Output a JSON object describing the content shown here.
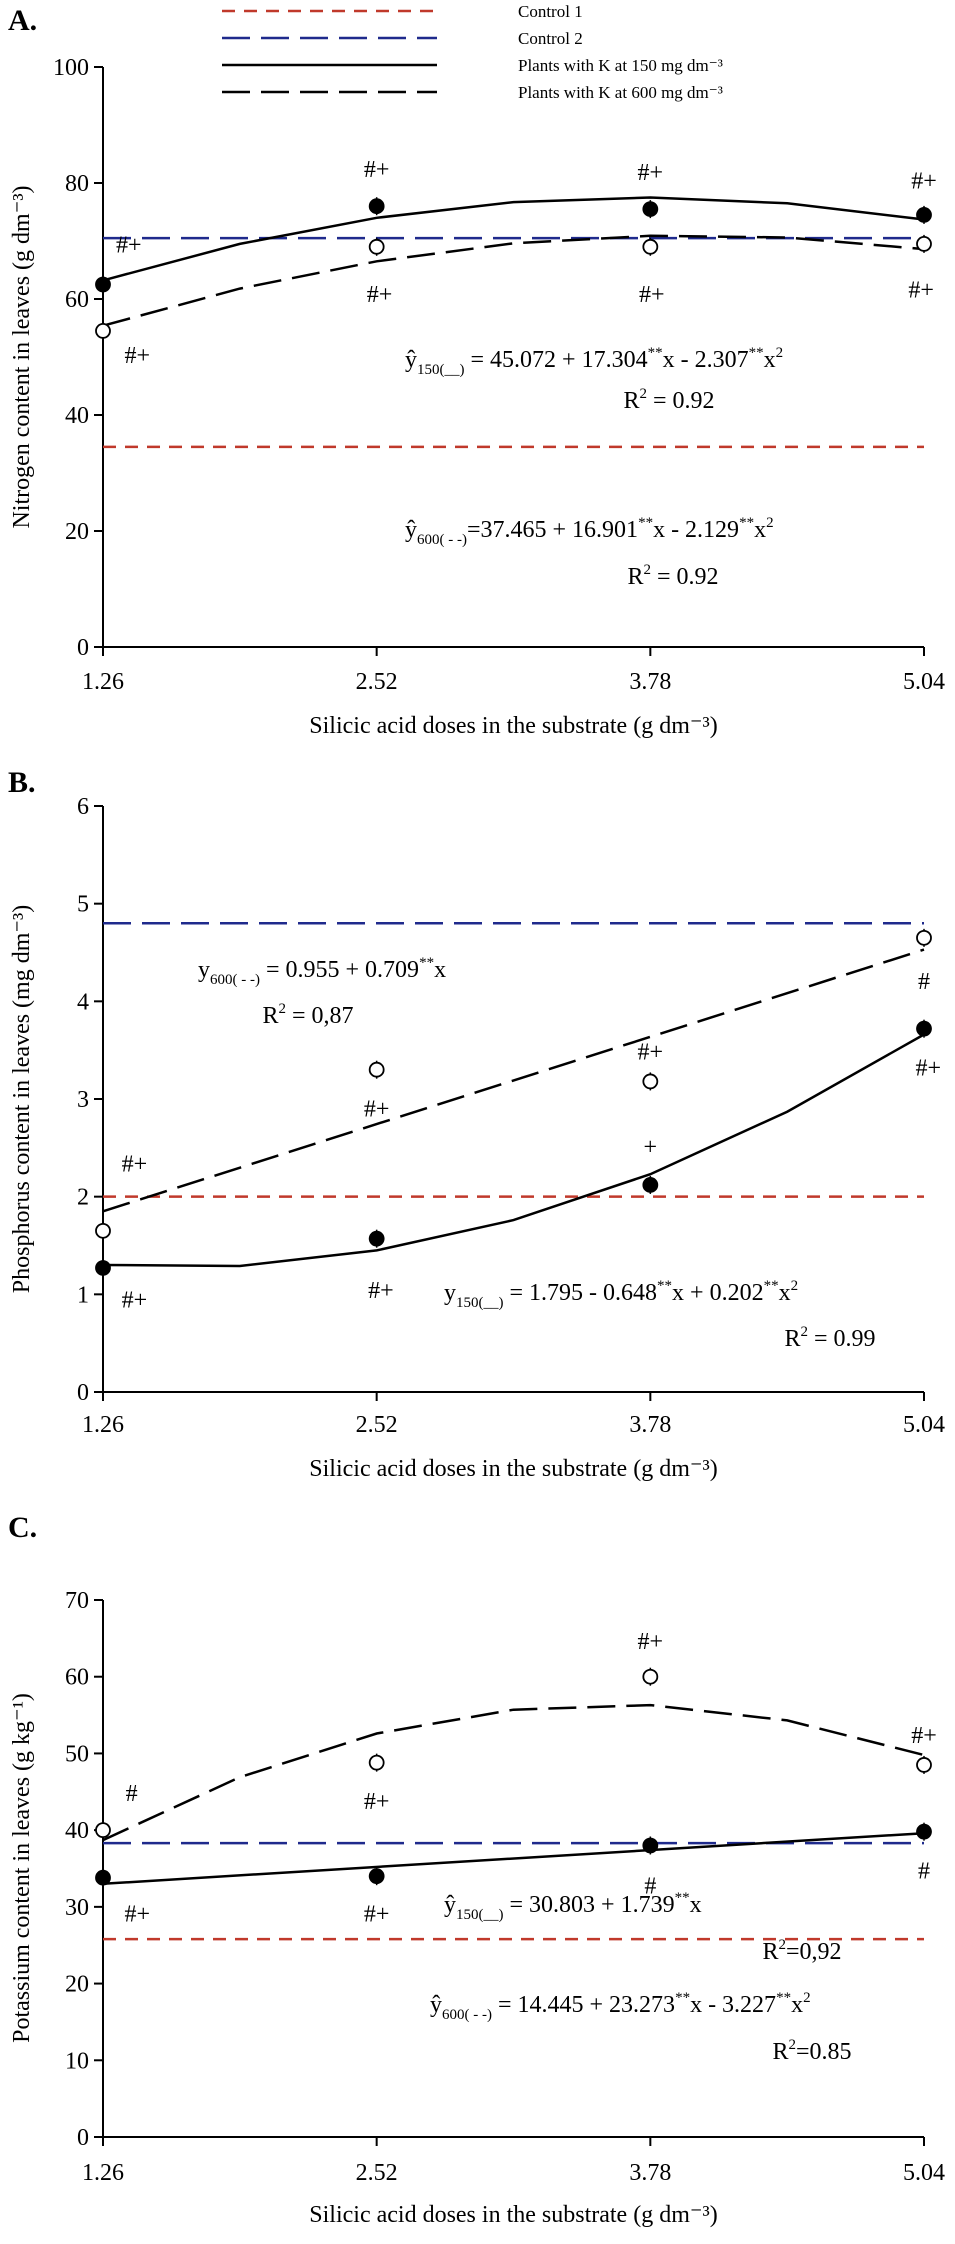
{
  "chart_data": [
    {
      "type": "scatter",
      "panel_label": "A.",
      "ylabel": "Nitrogen content in leaves (g dm⁻³)",
      "xlabel": "Silicic acid doses in the substrate (g dm⁻³)",
      "x": [
        1.26,
        2.52,
        3.78,
        5.04
      ],
      "xlim": [
        1.26,
        5.04
      ],
      "xticks": [
        1.26,
        2.52,
        3.78,
        5.04
      ],
      "ylim": [
        0,
        100
      ],
      "yticks": [
        0,
        20,
        40,
        60,
        80,
        100
      ],
      "legend": "top",
      "series": [
        {
          "name": "Control 1",
          "kind": "hline",
          "value": 34.5,
          "color": "#c0392b",
          "dash": "short"
        },
        {
          "name": "Control 2",
          "kind": "hline",
          "value": 70.5,
          "color": "#1f2a8c",
          "dash": "long"
        },
        {
          "name": "Plants with K at 150 mg dm⁻³",
          "kind": "points",
          "marker": "filled",
          "color": "#000000",
          "dash": "solid",
          "values": [
            62.5,
            76,
            75.5,
            74.5
          ],
          "labels": [
            "#+",
            "#+",
            "#+",
            "#+"
          ],
          "fit": {
            "x": [
              1.26,
              1.89,
              2.52,
              3.15,
              3.78,
              4.41,
              5.04
            ],
            "values": [
              63.2,
              69.5,
              74.0,
              76.7,
              77.5,
              76.5,
              73.7
            ]
          }
        },
        {
          "name": "Plants with K at 600 mg dm⁻³",
          "kind": "points",
          "marker": "open",
          "color": "#000000",
          "dash": "long",
          "values": [
            54.5,
            69,
            69,
            69.5
          ],
          "labels": [
            "#+",
            "#+",
            "#+",
            "#+"
          ],
          "fit": {
            "x": [
              1.26,
              1.89,
              2.52,
              3.15,
              3.78,
              4.41,
              5.04
            ],
            "values": [
              55.4,
              61.8,
              66.5,
              69.6,
              70.9,
              70.6,
              68.6
            ]
          }
        }
      ],
      "equations": [
        [
          "ŷ",
          {
            "sub": "150(__)"
          },
          " = 45.072 + 17.304",
          {
            "sup": "**"
          },
          "x - 2.307",
          {
            "sup": "**"
          },
          "x",
          {
            "sup": "2"
          }
        ],
        [
          "R",
          {
            "sup": "2"
          },
          " = 0.92"
        ],
        [
          "ŷ",
          {
            "sub": "600( - -)"
          },
          "=37.465 + 16.901",
          {
            "sup": "**"
          },
          "x - 2.129",
          {
            "sup": "**"
          },
          "x",
          {
            "sup": "2"
          }
        ],
        [
          "R",
          {
            "sup": "2"
          },
          " = 0.92"
        ]
      ]
    },
    {
      "type": "scatter",
      "panel_label": "B.",
      "ylabel": "Phosphorus content in leaves (mg dm⁻³)",
      "xlabel": "Silicic acid doses in the substrate (g dm⁻³)",
      "x": [
        1.26,
        2.52,
        3.78,
        5.04
      ],
      "xlim": [
        1.26,
        5.04
      ],
      "xticks": [
        1.26,
        2.52,
        3.78,
        5.04
      ],
      "ylim": [
        0,
        6
      ],
      "yticks": [
        0,
        1,
        2,
        3,
        4,
        5,
        6
      ],
      "series": [
        {
          "kind": "hline",
          "value": 2.0,
          "color": "#c0392b",
          "dash": "short"
        },
        {
          "kind": "hline",
          "value": 4.8,
          "color": "#1f2a8c",
          "dash": "long"
        },
        {
          "kind": "points",
          "marker": "filled",
          "color": "#000000",
          "dash": "solid",
          "values": [
            1.27,
            1.57,
            2.12,
            3.72
          ],
          "labels": [
            "#+",
            "#+",
            "+",
            "#+"
          ],
          "fit": {
            "x": [
              1.26,
              1.89,
              2.52,
              3.15,
              3.78,
              4.41,
              5.04
            ],
            "values": [
              1.3,
              1.29,
              1.45,
              1.76,
              2.23,
              2.87,
              3.66
            ]
          }
        },
        {
          "kind": "points",
          "marker": "open",
          "color": "#000000",
          "dash": "long",
          "values": [
            1.65,
            3.3,
            3.18,
            4.65
          ],
          "labels": [
            "#+",
            "#+",
            "#+",
            "#"
          ],
          "fit": {
            "x": [
              1.26,
              5.04
            ],
            "values": [
              1.85,
              4.53
            ]
          }
        }
      ],
      "equations": [
        [
          "y",
          {
            "sub": "600( - -)"
          },
          " = 0.955 + 0.709",
          {
            "sup": "**"
          },
          "x"
        ],
        [
          "R",
          {
            "sup": "2"
          },
          " = 0,87"
        ],
        [
          "y",
          {
            "sub": "150(__)"
          },
          " = 1.795 - 0.648",
          {
            "sup": "**"
          },
          "x + 0.202",
          {
            "sup": "**"
          },
          "x",
          {
            "sup": "2"
          }
        ],
        [
          "R",
          {
            "sup": "2"
          },
          " = 0.99"
        ]
      ]
    },
    {
      "type": "scatter",
      "panel_label": "C.",
      "ylabel": "Potassium content in leaves (g kg⁻¹)",
      "xlabel": "Silicic acid doses in the substrate (g dm⁻³)",
      "x": [
        1.26,
        2.52,
        3.78,
        5.04
      ],
      "xlim": [
        1.26,
        5.04
      ],
      "xticks": [
        1.26,
        2.52,
        3.78,
        5.04
      ],
      "ylim": [
        0,
        70
      ],
      "yticks": [
        0,
        10,
        20,
        30,
        40,
        50,
        60,
        70
      ],
      "series": [
        {
          "kind": "hline",
          "value": 25.8,
          "color": "#c0392b",
          "dash": "short"
        },
        {
          "kind": "hline",
          "value": 38.3,
          "color": "#1f2a8c",
          "dash": "long"
        },
        {
          "kind": "points",
          "marker": "filled",
          "color": "#000000",
          "dash": "solid",
          "values": [
            33.8,
            34,
            38,
            39.8
          ],
          "labels": [
            "#+",
            "#+",
            "#",
            "#"
          ],
          "fit": {
            "x": [
              1.26,
              5.04
            ],
            "values": [
              33.0,
              39.6
            ]
          }
        },
        {
          "kind": "points",
          "marker": "open",
          "color": "#000000",
          "dash": "long",
          "values": [
            40,
            48.8,
            60,
            48.5
          ],
          "labels": [
            "#",
            "#+",
            "#+",
            "#+"
          ],
          "fit": {
            "x": [
              1.26,
              1.89,
              2.52,
              3.15,
              3.78,
              4.41,
              5.04
            ],
            "values": [
              38.7,
              46.9,
              52.6,
              55.7,
              56.3,
              54.3,
              49.8
            ]
          }
        }
      ],
      "equations": [
        [
          "ŷ",
          {
            "sub": "150(__)"
          },
          " = 30.803 + 1.739",
          {
            "sup": "**"
          },
          "x"
        ],
        [
          "R",
          {
            "sup": "2"
          },
          "=0,92"
        ],
        [
          "ŷ",
          {
            "sub": "600( - -)"
          },
          " = 14.445 + 23.273",
          {
            "sup": "**"
          },
          "x - 3.227",
          {
            "sup": "**"
          },
          "x",
          {
            "sup": "2"
          }
        ],
        [
          "R",
          {
            "sup": "2"
          },
          "=0.85"
        ]
      ]
    }
  ]
}
